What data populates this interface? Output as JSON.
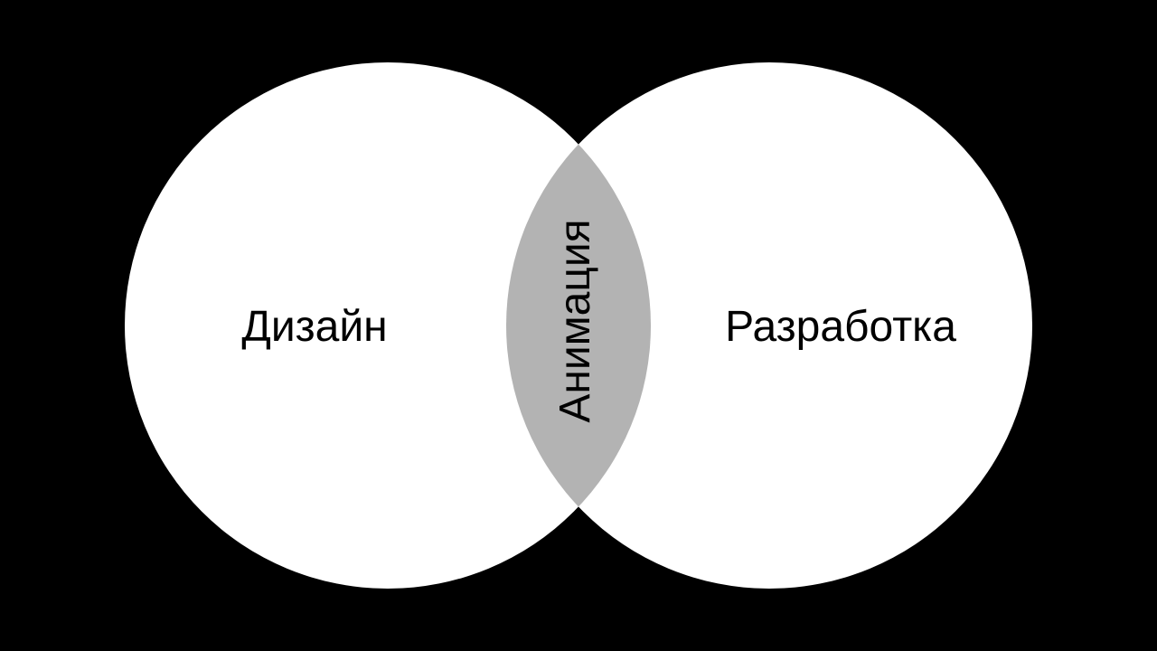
{
  "colors": {
    "background": "#000000",
    "circle_fill": "#ffffff",
    "intersection_fill": "#b3b3b3",
    "text": "#000000"
  },
  "diagram": {
    "type": "venn",
    "left_set": {
      "label": "Дизайн"
    },
    "right_set": {
      "label": "Разработка"
    },
    "intersection": {
      "label": "Анимация"
    }
  }
}
